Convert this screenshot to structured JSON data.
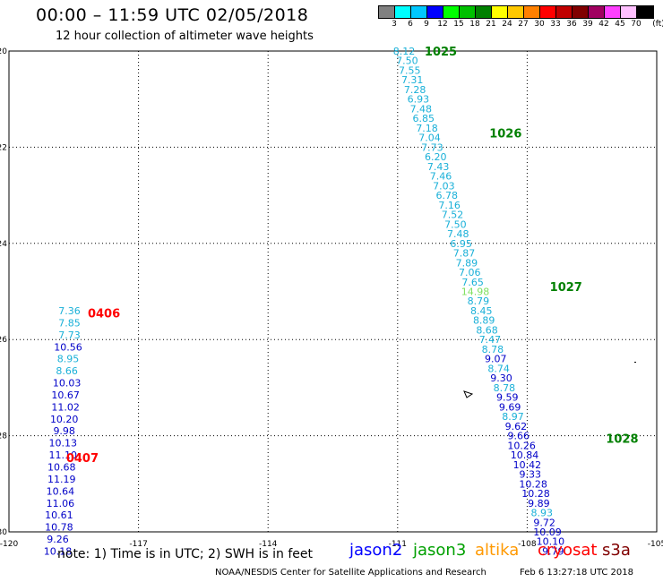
{
  "header": {
    "title": "00:00 – 11:59 UTC 02/05/2018",
    "subtitle": "12 hour collection of altimeter wave heights"
  },
  "color_scale": {
    "unit": "(ft)",
    "bins": [
      {
        "label": "3",
        "color": "#808080"
      },
      {
        "label": "6",
        "color": "#00ffff"
      },
      {
        "label": "9",
        "color": "#00c8ff"
      },
      {
        "label": "12",
        "color": "#0000ff"
      },
      {
        "label": "15",
        "color": "#00ff00"
      },
      {
        "label": "18",
        "color": "#00c000"
      },
      {
        "label": "21",
        "color": "#008000"
      },
      {
        "label": "24",
        "color": "#ffff00"
      },
      {
        "label": "27",
        "color": "#ffc800"
      },
      {
        "label": "30",
        "color": "#ff8000"
      },
      {
        "label": "33",
        "color": "#ff0000"
      },
      {
        "label": "36",
        "color": "#c00000"
      },
      {
        "label": "39",
        "color": "#800000"
      },
      {
        "label": "42",
        "color": "#a00060"
      },
      {
        "label": "45",
        "color": "#ff40ff"
      },
      {
        "label": "70",
        "color": "#ffc0ff"
      },
      {
        "label": "",
        "color": "#000000"
      }
    ]
  },
  "map": {
    "lon_range": [
      -120,
      -105
    ],
    "lat_range": [
      -30,
      -20
    ],
    "lon_ticks": [
      "-120",
      "-117",
      "-114",
      "-111",
      "-108",
      "-105"
    ],
    "lat_ticks": [
      "-20",
      "-22",
      "-24",
      "-26",
      "-28",
      "-30"
    ],
    "grid": "dotted",
    "colors": {
      "jason2": "#0000c8",
      "altika": "#1ab0d8",
      "altika_high": "#80e060",
      "time_label": "#008000",
      "cryosat_time": "#ff0000"
    },
    "tracks": [
      {
        "id": "east",
        "points": [
          {
            "lon": -110.85,
            "lat": -20.0,
            "v": "8.12",
            "c": "altika"
          },
          {
            "lon": -110.78,
            "lat": -20.2,
            "v": "7.50",
            "c": "altika"
          },
          {
            "lon": -110.72,
            "lat": -20.4,
            "v": "7.55",
            "c": "altika"
          },
          {
            "lon": -110.66,
            "lat": -20.6,
            "v": "7.31",
            "c": "altika"
          },
          {
            "lon": -110.6,
            "lat": -20.8,
            "v": "7.28",
            "c": "altika"
          },
          {
            "lon": -110.52,
            "lat": -21.0,
            "v": "6.93",
            "c": "altika"
          },
          {
            "lon": -110.46,
            "lat": -21.2,
            "v": "7.48",
            "c": "altika"
          },
          {
            "lon": -110.4,
            "lat": -21.4,
            "v": "6.85",
            "c": "altika"
          },
          {
            "lon": -110.32,
            "lat": -21.6,
            "v": "7.18",
            "c": "altika"
          },
          {
            "lon": -110.26,
            "lat": -21.8,
            "v": "7.04",
            "c": "altika"
          },
          {
            "lon": -110.2,
            "lat": -22.0,
            "v": "7.73",
            "c": "altika"
          },
          {
            "lon": -110.12,
            "lat": -22.2,
            "v": "6.20",
            "c": "altika"
          },
          {
            "lon": -110.06,
            "lat": -22.4,
            "v": "7.43",
            "c": "altika"
          },
          {
            "lon": -110.0,
            "lat": -22.6,
            "v": "7.46",
            "c": "altika"
          },
          {
            "lon": -109.93,
            "lat": -22.8,
            "v": "7.03",
            "c": "altika"
          },
          {
            "lon": -109.86,
            "lat": -23.0,
            "v": "6.78",
            "c": "altika"
          },
          {
            "lon": -109.8,
            "lat": -23.2,
            "v": "7.16",
            "c": "altika"
          },
          {
            "lon": -109.73,
            "lat": -23.4,
            "v": "7.52",
            "c": "altika"
          },
          {
            "lon": -109.66,
            "lat": -23.6,
            "v": "7.50",
            "c": "altika"
          },
          {
            "lon": -109.6,
            "lat": -23.8,
            "v": "7.48",
            "c": "altika"
          },
          {
            "lon": -109.53,
            "lat": -24.0,
            "v": "6.95",
            "c": "altika"
          },
          {
            "lon": -109.46,
            "lat": -24.2,
            "v": "7.87",
            "c": "altika"
          },
          {
            "lon": -109.4,
            "lat": -24.4,
            "v": "7.89",
            "c": "altika"
          },
          {
            "lon": -109.33,
            "lat": -24.6,
            "v": "7.06",
            "c": "altika"
          },
          {
            "lon": -109.26,
            "lat": -24.8,
            "v": "7.65",
            "c": "altika"
          },
          {
            "lon": -109.2,
            "lat": -25.0,
            "v": "14.98",
            "c": "altika_high"
          },
          {
            "lon": -109.13,
            "lat": -25.2,
            "v": "8.79",
            "c": "altika"
          },
          {
            "lon": -109.06,
            "lat": -25.4,
            "v": "8.45",
            "c": "altika"
          },
          {
            "lon": -109.0,
            "lat": -25.6,
            "v": "8.89",
            "c": "altika"
          },
          {
            "lon": -108.93,
            "lat": -25.8,
            "v": "8.68",
            "c": "altika"
          },
          {
            "lon": -108.86,
            "lat": -26.0,
            "v": "7.47",
            "c": "altika"
          },
          {
            "lon": -108.8,
            "lat": -26.2,
            "v": "8.78",
            "c": "altika"
          },
          {
            "lon": -108.73,
            "lat": -26.4,
            "v": "9.07",
            "c": "jason2"
          },
          {
            "lon": -108.66,
            "lat": -26.6,
            "v": "8.74",
            "c": "altika"
          },
          {
            "lon": -108.6,
            "lat": -26.8,
            "v": "9.30",
            "c": "jason2"
          },
          {
            "lon": -108.53,
            "lat": -27.0,
            "v": "8.78",
            "c": "altika"
          },
          {
            "lon": -108.46,
            "lat": -27.2,
            "v": "9.59",
            "c": "jason2"
          },
          {
            "lon": -108.4,
            "lat": -27.4,
            "v": "9.69",
            "c": "jason2"
          },
          {
            "lon": -108.33,
            "lat": -27.6,
            "v": "8.97",
            "c": "altika"
          },
          {
            "lon": -108.26,
            "lat": -27.8,
            "v": "9.62",
            "c": "jason2"
          },
          {
            "lon": -108.2,
            "lat": -28.0,
            "v": "9.66",
            "c": "jason2"
          },
          {
            "lon": -108.13,
            "lat": -28.2,
            "v": "10.26",
            "c": "jason2"
          },
          {
            "lon": -108.06,
            "lat": -28.4,
            "v": "10.84",
            "c": "jason2"
          },
          {
            "lon": -108.0,
            "lat": -28.6,
            "v": "10.42",
            "c": "jason2"
          },
          {
            "lon": -107.93,
            "lat": -28.8,
            "v": "9.33",
            "c": "jason2"
          },
          {
            "lon": -107.86,
            "lat": -29.0,
            "v": "10.28",
            "c": "jason2"
          },
          {
            "lon": -107.8,
            "lat": -29.2,
            "v": "10.28",
            "c": "jason2"
          },
          {
            "lon": -107.73,
            "lat": -29.4,
            "v": "9.89",
            "c": "jason2"
          },
          {
            "lon": -107.66,
            "lat": -29.6,
            "v": "8.93",
            "c": "altika"
          },
          {
            "lon": -107.6,
            "lat": -29.8,
            "v": "9.72",
            "c": "jason2"
          },
          {
            "lon": -107.53,
            "lat": -30.0,
            "v": "10.09",
            "c": "jason2"
          },
          {
            "lon": -107.46,
            "lat": -30.2,
            "v": "10.10",
            "c": "jason2"
          },
          {
            "lon": -107.4,
            "lat": -30.4,
            "v": "9.79",
            "c": "jason2"
          }
        ]
      },
      {
        "id": "west",
        "points": [
          {
            "lon": -118.6,
            "lat": -25.4,
            "v": "7.36",
            "c": "altika"
          },
          {
            "lon": -118.6,
            "lat": -25.65,
            "v": "7.85",
            "c": "altika"
          },
          {
            "lon": -118.6,
            "lat": -25.9,
            "v": "7.73",
            "c": "altika"
          },
          {
            "lon": -118.63,
            "lat": -26.15,
            "v": "10.56",
            "c": "jason2"
          },
          {
            "lon": -118.63,
            "lat": -26.4,
            "v": "8.95",
            "c": "altika"
          },
          {
            "lon": -118.66,
            "lat": -26.65,
            "v": "8.66",
            "c": "altika"
          },
          {
            "lon": -118.66,
            "lat": -26.9,
            "v": "10.03",
            "c": "jason2"
          },
          {
            "lon": -118.69,
            "lat": -27.15,
            "v": "10.67",
            "c": "jason2"
          },
          {
            "lon": -118.69,
            "lat": -27.4,
            "v": "11.02",
            "c": "jason2"
          },
          {
            "lon": -118.72,
            "lat": -27.65,
            "v": "10.20",
            "c": "jason2"
          },
          {
            "lon": -118.72,
            "lat": -27.9,
            "v": "9.98",
            "c": "jason2"
          },
          {
            "lon": -118.75,
            "lat": -28.15,
            "v": "10.13",
            "c": "jason2"
          },
          {
            "lon": -118.75,
            "lat": -28.4,
            "v": "11.10",
            "c": "jason2"
          },
          {
            "lon": -118.78,
            "lat": -28.65,
            "v": "10.68",
            "c": "jason2"
          },
          {
            "lon": -118.78,
            "lat": -28.9,
            "v": "11.19",
            "c": "jason2"
          },
          {
            "lon": -118.81,
            "lat": -29.15,
            "v": "10.64",
            "c": "jason2"
          },
          {
            "lon": -118.81,
            "lat": -29.4,
            "v": "11.06",
            "c": "jason2"
          },
          {
            "lon": -118.84,
            "lat": -29.65,
            "v": "10.61",
            "c": "jason2"
          },
          {
            "lon": -118.84,
            "lat": -29.9,
            "v": "10.78",
            "c": "jason2"
          },
          {
            "lon": -118.87,
            "lat": -30.15,
            "v": "9.26",
            "c": "jason2"
          },
          {
            "lon": -118.87,
            "lat": -30.4,
            "v": "10.18",
            "c": "jason2"
          }
        ]
      }
    ],
    "time_labels": [
      {
        "text": "1025",
        "lon": -110.0,
        "lat": -20.0,
        "c": "time_label"
      },
      {
        "text": "1026",
        "lon": -108.5,
        "lat": -21.7,
        "c": "time_label"
      },
      {
        "text": "1027",
        "lon": -107.1,
        "lat": -24.9,
        "c": "time_label"
      },
      {
        "text": "1028",
        "lon": -105.8,
        "lat": -28.05,
        "c": "time_label"
      },
      {
        "text": "0406",
        "lon": -117.8,
        "lat": -25.45,
        "c": "cryosat_time"
      },
      {
        "text": "0407",
        "lon": -118.3,
        "lat": -28.45,
        "c": "cryosat_time"
      }
    ]
  },
  "footer": {
    "note": "note:  1) Time is in UTC;  2) SWH is in feet",
    "legend": [
      {
        "label": "jason2",
        "color": "#0000ff"
      },
      {
        "label": "jason3",
        "color": "#00a000"
      },
      {
        "label": "altika",
        "color": "#ff9900"
      },
      {
        "label": "cryosat",
        "color": "#ff0000"
      },
      {
        "label": "s3a",
        "color": "#800000"
      }
    ],
    "credit": "NOAA/NESDIS Center for Satellite Applications and Research",
    "timestamp": "Feb  6 13:27:18 UTC 2018"
  }
}
